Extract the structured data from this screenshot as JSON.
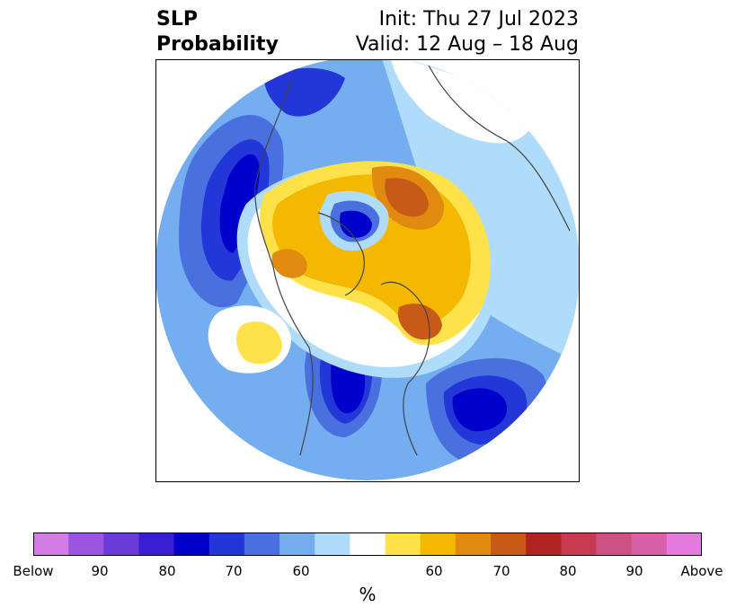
{
  "header": {
    "variable_line1": "SLP",
    "variable_line2": "Probability",
    "init_text": "Init: Thu 27 Jul 2023",
    "valid_text": "Valid: 12 Aug – 18 Aug"
  },
  "map": {
    "projection": "north-polar-stereographic",
    "anomalies": [
      {
        "region": "North Pacific / Alaska",
        "sign": "below",
        "peak_pct": 80
      },
      {
        "region": "Central Canada / Great Plains",
        "sign": "below",
        "peak_pct": 80
      },
      {
        "region": "Northwest Atlantic",
        "sign": "below",
        "peak_pct": 80
      },
      {
        "region": "Arctic Ocean",
        "sign": "below",
        "peak_pct": 80
      },
      {
        "region": "Greenland / Canadian Archipelago",
        "sign": "above",
        "peak_pct": 75
      },
      {
        "region": "Barents / Kara Sea",
        "sign": "above",
        "peak_pct": 80
      },
      {
        "region": "Eastern Pacific",
        "sign": "above",
        "peak_pct": 60
      }
    ]
  },
  "colorbar": {
    "unit": "%",
    "colors": [
      "#d57be6",
      "#9b55e0",
      "#6a3bd8",
      "#3a1ed4",
      "#0000cc",
      "#2337d9",
      "#4a70e0",
      "#74aef0",
      "#aedcfa",
      "#ffffff",
      "#ffe14a",
      "#f5b800",
      "#e08a10",
      "#c85a18",
      "#b22222",
      "#c83a52",
      "#cc5283",
      "#d860a8",
      "#e57ae0"
    ],
    "labels": [
      "Below",
      "90",
      "80",
      "70",
      "60",
      "60",
      "70",
      "80",
      "90",
      "Above"
    ]
  }
}
